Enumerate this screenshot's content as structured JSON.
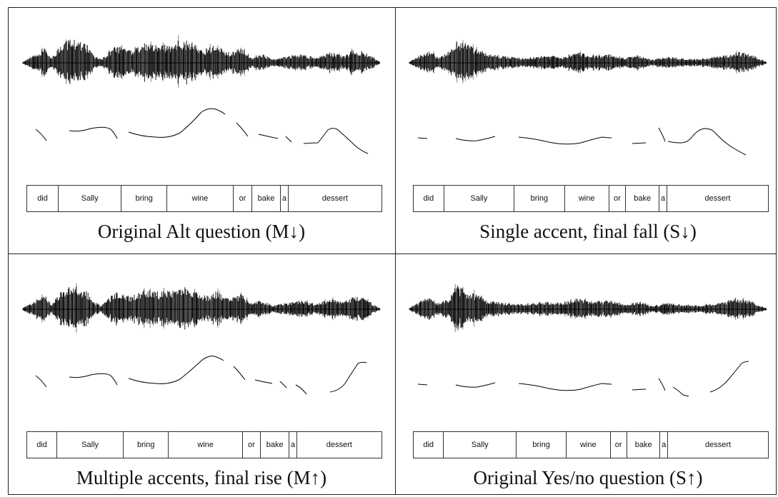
{
  "panels": [
    {
      "caption": "Original Alt question (M↓)",
      "words": [
        {
          "label": "did",
          "w": 1.0
        },
        {
          "label": "Sally",
          "w": 2.0
        },
        {
          "label": "bring",
          "w": 1.45
        },
        {
          "label": "wine",
          "w": 2.1
        },
        {
          "label": "or",
          "w": 0.6
        },
        {
          "label": "bake",
          "w": 0.9
        },
        {
          "label": "a",
          "w": 0.25
        },
        {
          "label": "dessert",
          "w": 2.95
        }
      ]
    },
    {
      "caption": "Single accent, final fall (S↓)",
      "words": [
        {
          "label": "did",
          "w": 1.0
        },
        {
          "label": "Sally",
          "w": 2.3
        },
        {
          "label": "bring",
          "w": 1.65
        },
        {
          "label": "wine",
          "w": 1.45
        },
        {
          "label": "or",
          "w": 0.55
        },
        {
          "label": "bake",
          "w": 1.1
        },
        {
          "label": "a",
          "w": 0.25
        },
        {
          "label": "dessert",
          "w": 3.3
        }
      ]
    },
    {
      "caption": "Multiple accents, final rise (M↑)",
      "words": [
        {
          "label": "did",
          "w": 1.0
        },
        {
          "label": "Sally",
          "w": 2.2
        },
        {
          "label": "bring",
          "w": 1.5
        },
        {
          "label": "wine",
          "w": 2.45
        },
        {
          "label": "or",
          "w": 0.6
        },
        {
          "label": "bake",
          "w": 0.95
        },
        {
          "label": "a",
          "w": 0.25
        },
        {
          "label": "dessert",
          "w": 2.8
        }
      ]
    },
    {
      "caption": "Original Yes/no question (S↑)",
      "words": [
        {
          "label": "did",
          "w": 1.0
        },
        {
          "label": "Sally",
          "w": 2.4
        },
        {
          "label": "bring",
          "w": 1.65
        },
        {
          "label": "wine",
          "w": 1.45
        },
        {
          "label": "or",
          "w": 0.55
        },
        {
          "label": "bake",
          "w": 1.1
        },
        {
          "label": "a",
          "w": 0.25
        },
        {
          "label": "dessert",
          "w": 3.3
        }
      ]
    }
  ]
}
